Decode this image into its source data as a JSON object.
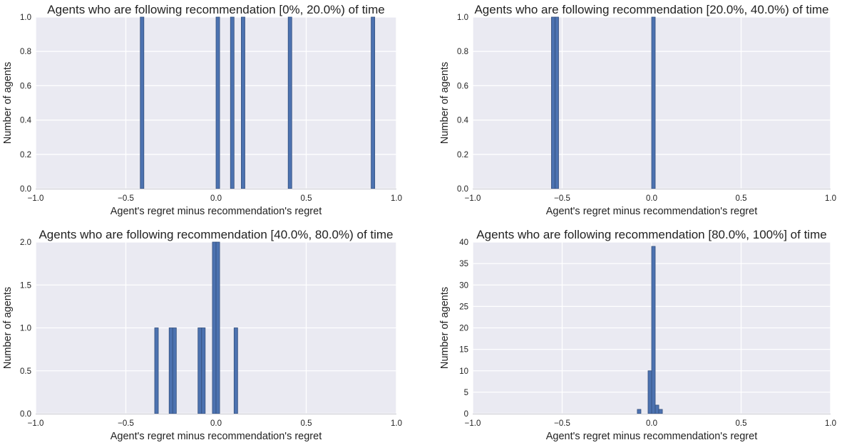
{
  "chart_data": [
    {
      "type": "bar",
      "title": "Agents who are following recommendation [0%, 20.0%) of time",
      "xlabel": "Agent's regret minus recommendation's regret",
      "ylabel": "Number of agents",
      "xlim": [
        -1.0,
        1.0
      ],
      "ylim": [
        0,
        1.0
      ],
      "xticks": [
        "−1.0",
        "−0.5",
        "0.0",
        "0.5",
        "1.0"
      ],
      "yticks": [
        "0.0",
        "0.2",
        "0.4",
        "0.6",
        "0.8",
        "1.0"
      ],
      "bin_width": 0.02,
      "bars": [
        {
          "x": -0.42,
          "value": 1
        },
        {
          "x": 0.0,
          "value": 1
        },
        {
          "x": 0.08,
          "value": 1
        },
        {
          "x": 0.14,
          "value": 1
        },
        {
          "x": 0.4,
          "value": 1
        },
        {
          "x": 0.86,
          "value": 1
        }
      ],
      "color": "#4c72b0"
    },
    {
      "type": "bar",
      "title": "Agents who are following recommendation [20.0%, 40.0%) of time",
      "xlabel": "Agent's regret minus recommendation's regret",
      "ylabel": "Number of agents",
      "xlim": [
        -1.0,
        1.0
      ],
      "ylim": [
        0,
        1.0
      ],
      "xticks": [
        "−1.0",
        "−0.5",
        "0.0",
        "0.5",
        "1.0"
      ],
      "yticks": [
        "0.0",
        "0.2",
        "0.4",
        "0.6",
        "0.8",
        "1.0"
      ],
      "bin_width": 0.02,
      "bars": [
        {
          "x": -0.56,
          "value": 1
        },
        {
          "x": -0.54,
          "value": 1
        },
        {
          "x": 0.0,
          "value": 1
        }
      ],
      "color": "#4c72b0"
    },
    {
      "type": "bar",
      "title": "Agents who are following recommendation [40.0%, 80.0%) of time",
      "xlabel": "Agent's regret minus recommendation's regret",
      "ylabel": "Number of agents",
      "xlim": [
        -1.0,
        1.0
      ],
      "ylim": [
        0,
        2.0
      ],
      "xticks": [
        "−1.0",
        "−0.5",
        "0.0",
        "0.5",
        "1.0"
      ],
      "yticks": [
        "0.0",
        "0.5",
        "1.0",
        "1.5",
        "2.0"
      ],
      "bin_width": 0.02,
      "bars": [
        {
          "x": -0.34,
          "value": 1
        },
        {
          "x": -0.26,
          "value": 1
        },
        {
          "x": -0.24,
          "value": 1
        },
        {
          "x": -0.1,
          "value": 1
        },
        {
          "x": -0.08,
          "value": 1
        },
        {
          "x": -0.02,
          "value": 2
        },
        {
          "x": 0.0,
          "value": 2
        },
        {
          "x": 0.1,
          "value": 1
        }
      ],
      "color": "#4c72b0"
    },
    {
      "type": "bar",
      "title": "Agents who are following recommendation [80.0%, 100%] of time",
      "xlabel": "Agent's regret minus recommendation's regret",
      "ylabel": "Number of agents",
      "xlim": [
        -1.0,
        1.0
      ],
      "ylim": [
        0,
        40
      ],
      "xticks": [
        "−1.0",
        "−0.5",
        "0.0",
        "0.5",
        "1.0"
      ],
      "yticks": [
        "0",
        "5",
        "10",
        "15",
        "20",
        "25",
        "30",
        "35",
        "40"
      ],
      "bin_width": 0.02,
      "bars": [
        {
          "x": -0.08,
          "value": 1
        },
        {
          "x": -0.02,
          "value": 10
        },
        {
          "x": 0.0,
          "value": 39
        },
        {
          "x": 0.02,
          "value": 2
        },
        {
          "x": 0.04,
          "value": 1
        }
      ],
      "color": "#4c72b0"
    }
  ]
}
